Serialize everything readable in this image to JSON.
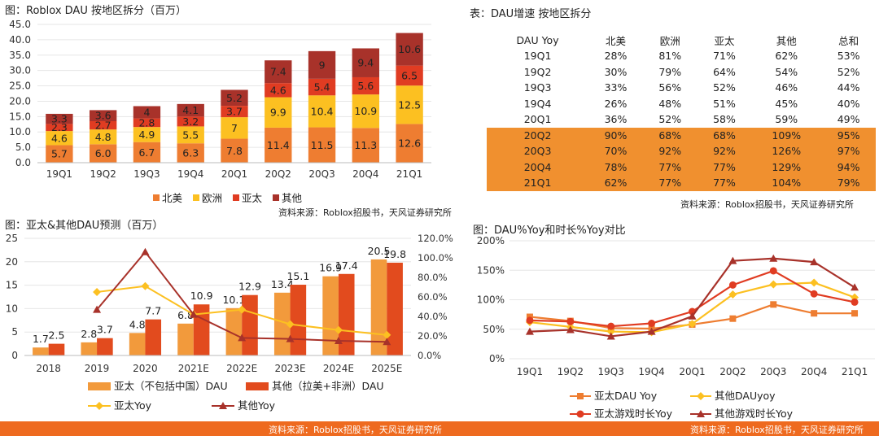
{
  "chart_data": [
    {
      "id": "c1",
      "type": "bar",
      "stacked": true,
      "title": "图：Roblox DAU 按地区拆分（百万）",
      "categories": [
        "19Q1",
        "19Q2",
        "19Q3",
        "19Q4",
        "20Q1",
        "20Q2",
        "20Q3",
        "20Q4",
        "21Q1"
      ],
      "ylim": [
        0,
        45
      ],
      "yticks": [
        "0.0",
        "5.0",
        "10.0",
        "15.0",
        "20.0",
        "25.0",
        "30.0",
        "35.0",
        "40.0",
        "45.0"
      ],
      "series": [
        {
          "name": "北美",
          "color": "#ee7d31",
          "values": [
            5.7,
            6.0,
            6.7,
            6.3,
            7.8,
            11.4,
            11.5,
            11.3,
            12.6
          ],
          "labels": [
            "5.7",
            "6.0",
            "6.7",
            "6.3",
            "7.8",
            "11.4",
            "11.5",
            "11.3",
            "12.6"
          ]
        },
        {
          "name": "欧洲",
          "color": "#fcc021",
          "values": [
            4.6,
            4.8,
            4.9,
            5.5,
            7,
            9.9,
            10.4,
            10.9,
            12.5
          ],
          "labels": [
            "4.6",
            "4.8",
            "4.9",
            "5.5",
            "7",
            "9.9",
            "10.4",
            "10.9",
            "12.5"
          ]
        },
        {
          "name": "亚太",
          "color": "#e03c22",
          "values": [
            2.3,
            2.7,
            2.8,
            3.2,
            3.7,
            4.6,
            5.4,
            5.6,
            6.5
          ],
          "labels": [
            "2.3",
            "2.7",
            "2.8",
            "3.2",
            "3.7",
            "4.6",
            "5.4",
            "5.6",
            "6.5"
          ]
        },
        {
          "name": "其他",
          "color": "#a8322a",
          "values": [
            3.3,
            3.6,
            4,
            4.1,
            5.2,
            7.4,
            9,
            9.4,
            10.6
          ],
          "labels": [
            "3.3",
            "3.6",
            "4",
            "4.1",
            "5.2",
            "7.4",
            "9",
            "9.4",
            "10.6"
          ]
        }
      ],
      "legend": "bottom",
      "source": "资料来源：Roblox招股书，天风证券研究所"
    },
    {
      "id": "c2",
      "type": "table",
      "title": "表：DAU增速 按地区拆分",
      "columns": [
        "DAU Yoy",
        "北美",
        "欧洲",
        "亚太",
        "其他",
        "总和"
      ],
      "rows": [
        [
          "19Q1",
          "28%",
          "81%",
          "71%",
          "62%",
          "53%"
        ],
        [
          "19Q2",
          "30%",
          "79%",
          "64%",
          "54%",
          "52%"
        ],
        [
          "19Q3",
          "33%",
          "56%",
          "52%",
          "46%",
          "44%"
        ],
        [
          "19Q4",
          "26%",
          "48%",
          "51%",
          "45%",
          "40%"
        ],
        [
          "20Q1",
          "36%",
          "52%",
          "58%",
          "59%",
          "49%"
        ],
        [
          "20Q2",
          "90%",
          "68%",
          "68%",
          "109%",
          "95%"
        ],
        [
          "20Q3",
          "70%",
          "92%",
          "92%",
          "126%",
          "97%"
        ],
        [
          "20Q4",
          "78%",
          "77%",
          "77%",
          "129%",
          "94%"
        ],
        [
          "21Q1",
          "62%",
          "77%",
          "77%",
          "104%",
          "79%"
        ]
      ],
      "highlight_from_row": 5,
      "highlight_color": "#f0902f",
      "source": "资料来源：Roblox招股书，天风证券研究所"
    },
    {
      "id": "c3",
      "type": "bar+line",
      "title": "图：亚太&其他DAU预测（百万）",
      "categories": [
        "2018",
        "2019",
        "2020",
        "2021E",
        "2022E",
        "2023E",
        "2024E",
        "2025E"
      ],
      "ylim": [
        0,
        25
      ],
      "yticks": [
        "0",
        "5",
        "10",
        "15",
        "20",
        "25"
      ],
      "y2lim": [
        0,
        1.2
      ],
      "y2ticks": [
        "0.0%",
        "20.0%",
        "40.0%",
        "60.0%",
        "80.0%",
        "100.0%",
        "120.0%"
      ],
      "bars": [
        {
          "name": "亚太（不包括中国）DAU",
          "color": "#f29a3c",
          "values": [
            1.7,
            2.8,
            4.8,
            6.8,
            10.1,
            13.4,
            16.9,
            20.5
          ],
          "labels": [
            "1.7",
            "2.8",
            "4.8",
            "6.8",
            "10.1",
            "13.4",
            "16.9",
            "20.5"
          ]
        },
        {
          "name": "其他（拉美+非洲）DAU",
          "color": "#e24b1e",
          "values": [
            2.5,
            3.7,
            7.7,
            10.9,
            12.9,
            15.1,
            17.4,
            19.8
          ],
          "labels": [
            "2.5",
            "3.7",
            "7.7",
            "10.9",
            "12.9",
            "15.1",
            "17.4",
            "19.8"
          ]
        }
      ],
      "lines": [
        {
          "name": "亚太Yoy",
          "color": "#fcc021",
          "marker": "diamond",
          "values": [
            null,
            0.65,
            0.71,
            0.42,
            0.47,
            0.32,
            0.26,
            0.21
          ]
        },
        {
          "name": "其他Yoy",
          "color": "#a8322a",
          "marker": "triangle",
          "values": [
            null,
            0.47,
            1.06,
            0.42,
            0.18,
            0.17,
            0.15,
            0.14
          ]
        }
      ],
      "legend": "bottom"
    },
    {
      "id": "c4",
      "type": "line",
      "title": "图：DAU%Yoy和时长%Yoy对比",
      "categories": [
        "19Q1",
        "19Q2",
        "19Q3",
        "19Q4",
        "20Q1",
        "20Q2",
        "20Q3",
        "20Q4",
        "21Q1"
      ],
      "ylim": [
        0,
        2.0
      ],
      "yticks": [
        "0%",
        "50%",
        "100%",
        "150%",
        "200%"
      ],
      "series": [
        {
          "name": "亚太DAU Yoy",
          "color": "#ee7d31",
          "marker": "square",
          "values": [
            0.71,
            0.64,
            0.52,
            0.51,
            0.58,
            0.68,
            0.92,
            0.77,
            0.77
          ]
        },
        {
          "name": "其他DAUyoy",
          "color": "#fcc021",
          "marker": "diamond",
          "values": [
            0.62,
            0.54,
            0.46,
            0.45,
            0.59,
            1.09,
            1.26,
            1.29,
            1.04
          ]
        },
        {
          "name": "亚太游戏时长Yoy",
          "color": "#e03c22",
          "marker": "circle",
          "values": [
            0.65,
            0.63,
            0.55,
            0.6,
            0.8,
            1.25,
            1.49,
            1.1,
            0.96
          ]
        },
        {
          "name": "其他游戏时长Yoy",
          "color": "#a8322a",
          "marker": "triangle",
          "values": [
            0.46,
            0.49,
            0.38,
            0.46,
            0.72,
            1.66,
            1.7,
            1.64,
            1.21
          ]
        }
      ],
      "legend": "bottom",
      "source": "资料来源：Roblox招股书，天风证券研究所"
    }
  ],
  "footer": {
    "source_left": "资料来源：Roblox招股书，天风证券研究所",
    "source_right": "资料来源：Roblox招股书，天风证券研究所",
    "color": "#ee6a1f"
  }
}
